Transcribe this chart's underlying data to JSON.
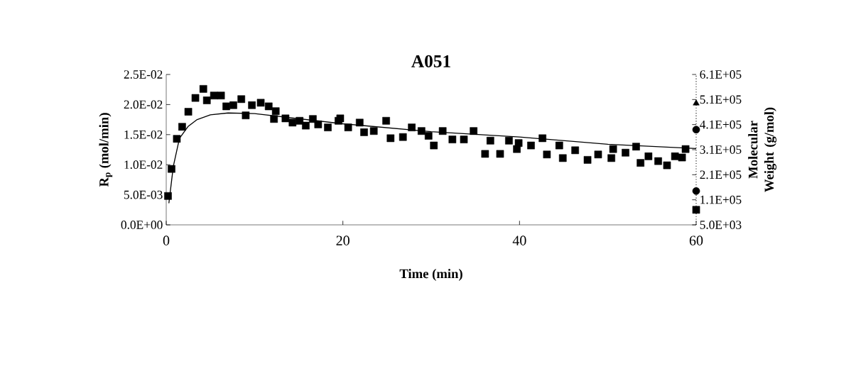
{
  "chart_data": {
    "type": "scatter",
    "title": "A051",
    "xlabel": "Time (min)",
    "ylabel": "R$_{p}$ (mol/min)",
    "y2label": "Molecular Weight (g/mol)",
    "xlim": [
      0,
      60
    ],
    "xticks": [
      0,
      20,
      40,
      60
    ],
    "ylim": [
      0,
      0.025
    ],
    "yticks": [
      {
        "value": 0,
        "label": "0.0E+00"
      },
      {
        "value": 0.005,
        "label": "5.0E-03"
      },
      {
        "value": 0.01,
        "label": "1.0E-02"
      },
      {
        "value": 0.015,
        "label": "1.5E-02"
      },
      {
        "value": 0.02,
        "label": "2.0E-02"
      },
      {
        "value": 0.025,
        "label": "2.5E-02"
      }
    ],
    "y2lim": [
      5000,
      605000
    ],
    "y2ticks": [
      {
        "value": 5000,
        "label": "5.0E+03"
      },
      {
        "value": 105000,
        "label": "1.1E+05"
      },
      {
        "value": 205000,
        "label": "2.1E+05"
      },
      {
        "value": 305000,
        "label": "3.1E+05"
      },
      {
        "value": 405000,
        "label": "4.1E+05"
      },
      {
        "value": 505000,
        "label": "5.1E+05"
      },
      {
        "value": 605000,
        "label": "6.1E+05"
      }
    ],
    "ref_lines": [
      {
        "axis": "x",
        "value": 60,
        "line_style": "dotted",
        "color": "#000000"
      }
    ],
    "series": [
      {
        "marker": "square",
        "color": "#000000",
        "x": [
          0.2,
          0.6,
          1.2,
          1.8,
          2.5,
          3.3,
          4.2,
          4.6,
          5.4,
          6.2,
          6.8,
          7.6,
          8.5,
          9.0,
          9.7,
          10.7,
          11.6,
          12.2,
          12.4,
          13.5,
          14.3,
          15.1,
          15.8,
          16.6,
          17.2,
          18.3,
          19.5,
          19.7,
          20.6,
          21.9,
          22.4,
          23.5,
          24.9,
          25.4,
          26.8,
          27.8,
          28.9,
          29.7,
          30.3,
          31.3,
          32.4,
          33.7,
          34.8,
          36.1,
          36.7,
          37.8,
          38.8,
          39.7,
          39.9,
          41.3,
          42.6,
          43.1,
          44.5,
          44.9,
          46.3,
          47.7,
          48.9,
          50.4,
          50.6,
          52.0,
          53.2,
          53.7,
          54.6,
          55.7,
          56.7,
          57.6,
          58.4,
          58.8
        ],
        "values": [
          0.0048,
          0.0093,
          0.0143,
          0.0163,
          0.0188,
          0.0211,
          0.0226,
          0.0207,
          0.0215,
          0.0215,
          0.0197,
          0.0199,
          0.0209,
          0.0182,
          0.0199,
          0.0203,
          0.0197,
          0.0176,
          0.0189,
          0.0177,
          0.017,
          0.0173,
          0.0165,
          0.0176,
          0.0167,
          0.0162,
          0.0173,
          0.0177,
          0.0162,
          0.017,
          0.0154,
          0.0156,
          0.0173,
          0.0144,
          0.0146,
          0.0162,
          0.0156,
          0.0148,
          0.0132,
          0.0156,
          0.0142,
          0.0142,
          0.0156,
          0.0118,
          0.014,
          0.0118,
          0.014,
          0.0126,
          0.0136,
          0.0132,
          0.0144,
          0.0117,
          0.0132,
          0.0111,
          0.0124,
          0.0108,
          0.0117,
          0.0111,
          0.0126,
          0.012,
          0.013,
          0.0103,
          0.0114,
          0.0106,
          0.0099,
          0.0114,
          0.0112,
          0.0126
        ]
      },
      {
        "type": "line",
        "marker": "none",
        "line_style": "solid",
        "color": "#000000",
        "x": [
          0.3,
          0.8,
          1.5,
          2.5,
          3.5,
          5,
          7,
          10,
          20,
          30,
          40,
          50,
          60
        ],
        "values": [
          0.0036,
          0.0097,
          0.0144,
          0.0164,
          0.0175,
          0.0183,
          0.0186,
          0.0185,
          0.0168,
          0.0155,
          0.0146,
          0.0134,
          0.0127
        ]
      },
      {
        "type": "scatter",
        "axis": "y2",
        "marker": "triangle",
        "color": "#000000",
        "x": [
          60
        ],
        "values": [
          490000
        ]
      },
      {
        "type": "scatter",
        "axis": "y2",
        "marker": "circle",
        "color": "#000000",
        "x": [
          60
        ],
        "values": [
          385000
        ]
      },
      {
        "type": "scatter",
        "axis": "y2",
        "marker": "circle",
        "color": "#000000",
        "x": [
          60
        ],
        "values": [
          140000
        ]
      },
      {
        "type": "scatter",
        "axis": "y2",
        "marker": "square",
        "color": "#000000",
        "x": [
          60
        ],
        "values": [
          65000
        ]
      }
    ]
  }
}
